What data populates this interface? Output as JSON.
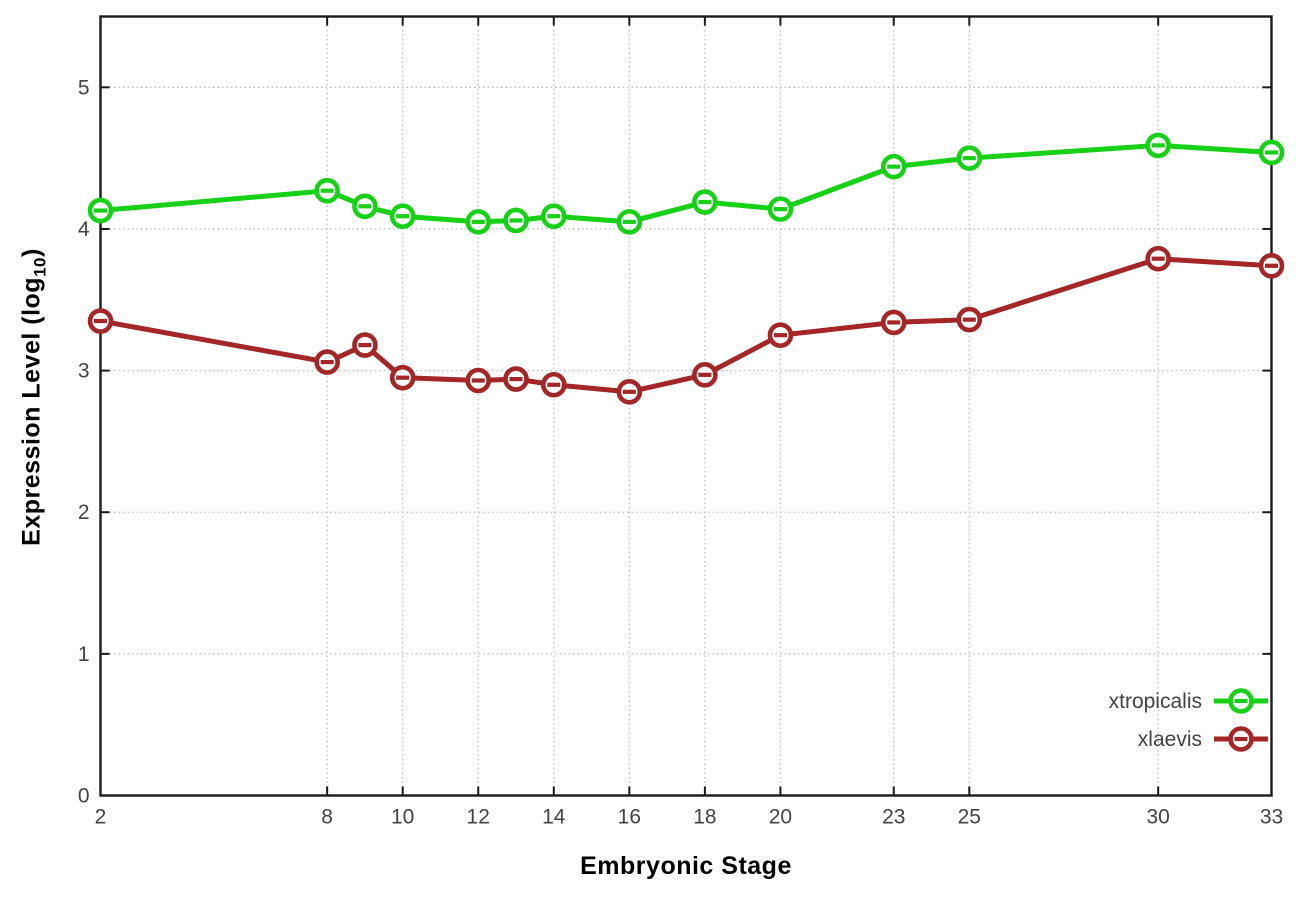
{
  "chart_data": {
    "type": "line",
    "title": "",
    "xlabel": "Embryonic Stage",
    "ylabel_prefix": "Expression Level (log",
    "ylabel_sub": "10",
    "ylabel_suffix": ")",
    "x": [
      2,
      8,
      9,
      10,
      12,
      13,
      14,
      16,
      18,
      20,
      23,
      25,
      30,
      33
    ],
    "x_tick_labels": [
      2,
      8,
      10,
      12,
      14,
      16,
      18,
      20,
      23,
      25,
      30,
      33
    ],
    "y_tick_labels": [
      0,
      1,
      2,
      3,
      4,
      5
    ],
    "xlim": [
      2,
      33
    ],
    "ylim": [
      0,
      5.5
    ],
    "grid": true,
    "legend_position": "inside-bottom-right",
    "series": [
      {
        "name": "xtropicalis",
        "color": "#17d117",
        "values": [
          4.13,
          4.27,
          4.16,
          4.09,
          4.05,
          4.06,
          4.09,
          4.05,
          4.19,
          4.14,
          4.44,
          4.5,
          4.59,
          4.54
        ]
      },
      {
        "name": "xlaevis",
        "color": "#a42626",
        "values": [
          3.35,
          3.06,
          3.18,
          2.95,
          2.93,
          2.94,
          2.9,
          2.85,
          2.97,
          3.25,
          3.34,
          3.36,
          3.79,
          3.74
        ]
      }
    ]
  },
  "colors": {
    "background": "#ffffff",
    "plot_border": "#1a1a1a",
    "grid": "#bcbcbc",
    "tick_label": "#434343",
    "legend_text": "#111111"
  }
}
